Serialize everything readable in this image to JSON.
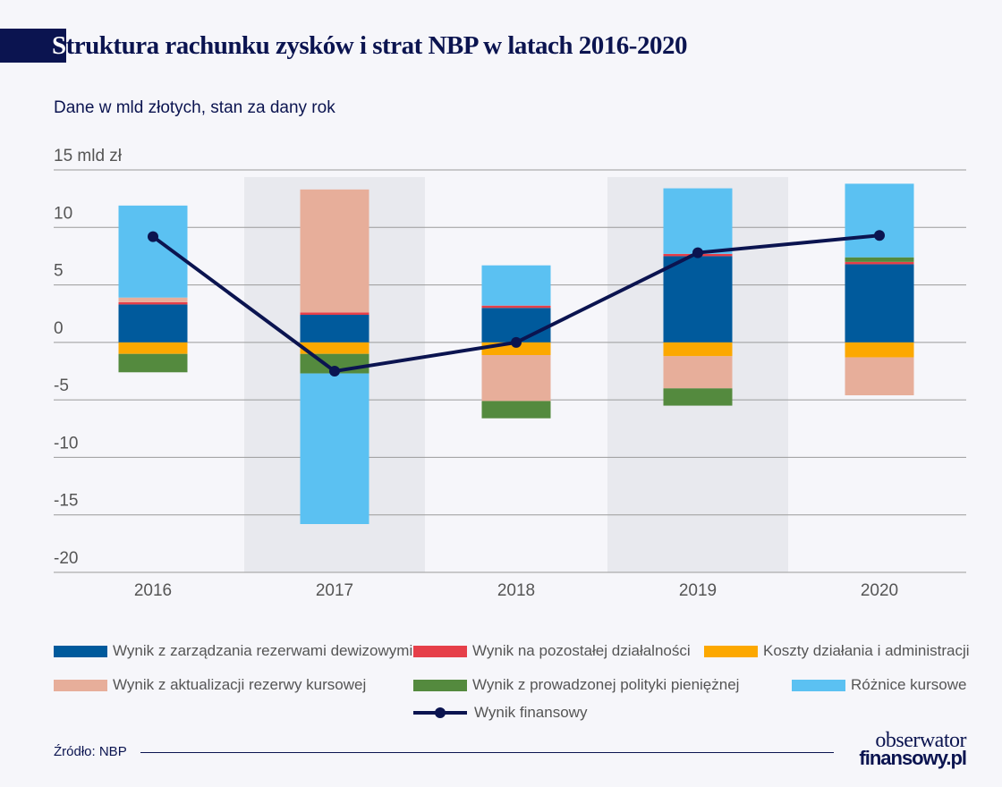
{
  "title_first": "S",
  "title_rest": "truktura rachunku zysków i strat NBP w latach 2016-2020",
  "subtitle": "Dane w mld złotych, stan za dany rok",
  "source": "Źródło: NBP",
  "logo": {
    "line1": "obserwator",
    "line2": "finansowy.pl"
  },
  "chart_data": {
    "type": "bar",
    "stacked": true,
    "categories": [
      "2016",
      "2017",
      "2018",
      "2019",
      "2020"
    ],
    "ylim": [
      -20,
      15
    ],
    "yticks": [
      15,
      10,
      5,
      0,
      -5,
      -10,
      -15,
      -20
    ],
    "ytick_labels": [
      "15 mld zł",
      "10",
      "5",
      "0",
      "-5",
      "-10",
      "-15",
      "-20"
    ],
    "grid": true,
    "shaded_categories": [
      "2017",
      "2019"
    ],
    "legend_position": "bottom",
    "series": [
      {
        "name": "Wynik z zarządzania rezerwami dewizowymi",
        "color": "#005a9c",
        "values": [
          3.3,
          2.4,
          3.0,
          7.5,
          6.8
        ]
      },
      {
        "name": "Wynik na pozostałej działalności",
        "color": "#e63f49",
        "values": [
          0.2,
          0.2,
          0.2,
          0.2,
          0.2
        ]
      },
      {
        "name": "Koszty działania i administracji",
        "color": "#fca800",
        "values": [
          -1.0,
          -1.0,
          -1.1,
          -1.2,
          -1.3
        ]
      },
      {
        "name": "Wynik z aktualizacji rezerwy kursowej",
        "color": "#e7ae9a",
        "values": [
          0.4,
          10.7,
          -4.0,
          -2.8,
          -3.3
        ]
      },
      {
        "name": "Wynik z prowadzonej polityki pieniężnej",
        "color": "#548a3e",
        "values": [
          -1.6,
          -1.7,
          -1.5,
          -1.5,
          0.4
        ]
      },
      {
        "name": "Różnice kursowe",
        "color": "#5bc1f2",
        "values": [
          8.0,
          -13.1,
          3.5,
          5.7,
          6.4
        ]
      }
    ],
    "line": {
      "name": "Wynik finansowy",
      "color": "#0b1450",
      "values": [
        9.2,
        -2.5,
        0.0,
        7.8,
        9.3
      ]
    }
  }
}
